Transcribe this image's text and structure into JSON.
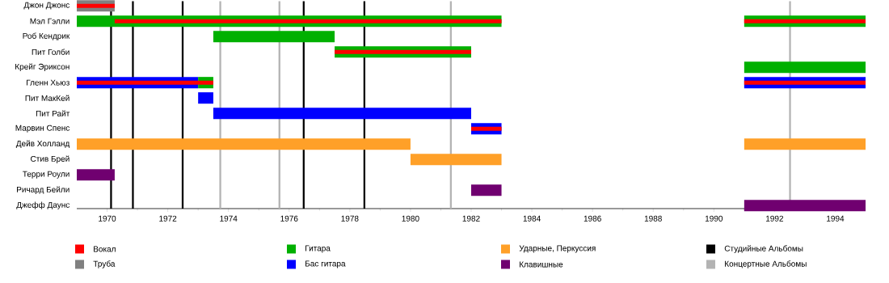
{
  "chart_data": {
    "type": "bar",
    "orientation": "horizontal",
    "legend": "bottom",
    "categories": [
      "Джон Джонс",
      "Мэл Гэлли",
      "Роб Кендрик",
      "Пит Голби",
      "Крейг Эриксон",
      "Гленн Хьюз",
      "Пит МакКей",
      "Пит Райт",
      "Марвин Спенс",
      "Дейв Холланд",
      "Стив Брей",
      "Терри Роули",
      "Ричард Бейли",
      "Джефф Даунс"
    ],
    "xlim": [
      1969,
      1995
    ],
    "xticks": [
      1970,
      1972,
      1974,
      1976,
      1978,
      1980,
      1982,
      1984,
      1986,
      1988,
      1990,
      1992,
      1994
    ],
    "series": [
      {
        "name": "Вокал",
        "color": "#ff0000",
        "base": [
          1969,
          1970.25,
          null,
          1977.5,
          null,
          1969,
          null,
          null,
          1982,
          null,
          null,
          null,
          null,
          null
        ],
        "values": [
          1.25,
          12.75,
          null,
          4.5,
          null,
          4.5,
          null,
          null,
          1,
          null,
          null,
          null,
          null,
          null
        ]
      },
      {
        "name": "Труба",
        "color": "#808080",
        "base": [
          1969,
          null,
          null,
          null,
          null,
          null,
          null,
          null,
          null,
          null,
          null,
          null,
          null,
          null
        ],
        "values": [
          1.25,
          null,
          null,
          null,
          null,
          null,
          null,
          null,
          null,
          null,
          null,
          null,
          null,
          null
        ]
      },
      {
        "name": "Гитара",
        "color": "#00b000",
        "base": [
          null,
          1969,
          1973.5,
          1977.5,
          null,
          1973,
          null,
          null,
          null,
          null,
          null,
          null,
          null,
          null
        ],
        "values": [
          null,
          14,
          4,
          4.5,
          null,
          0.5,
          null,
          null,
          null,
          null,
          null,
          null,
          null,
          null
        ]
      },
      {
        "name": "Бас гитара",
        "color": "#0000ff",
        "base": [
          null,
          null,
          null,
          null,
          null,
          1969,
          1973,
          1973.5,
          1982,
          null,
          null,
          null,
          null,
          null
        ],
        "values": [
          null,
          null,
          null,
          null,
          null,
          4,
          0.5,
          8.5,
          1,
          null,
          null,
          null,
          null,
          null
        ]
      },
      {
        "name": "Ударные, Перкуссия",
        "color": "#ffa028",
        "base": [
          null,
          null,
          null,
          null,
          null,
          null,
          null,
          null,
          null,
          1969,
          1980,
          null,
          null,
          null
        ],
        "values": [
          null,
          null,
          null,
          null,
          null,
          null,
          null,
          null,
          null,
          11,
          3,
          null,
          null,
          null
        ]
      },
      {
        "name": "Клавишные",
        "color": "#700070",
        "base": [
          null,
          null,
          null,
          null,
          null,
          null,
          null,
          null,
          null,
          null,
          null,
          1969,
          1982,
          null
        ],
        "values": [
          null,
          null,
          null,
          null,
          null,
          null,
          null,
          null,
          null,
          null,
          null,
          1.25,
          1,
          null
        ]
      },
      {
        "color": "#ff0000",
        "base": [
          null,
          1991,
          null,
          null,
          null,
          1991,
          null,
          null,
          null,
          null,
          null,
          null,
          null,
          null
        ],
        "values": [
          null,
          4,
          null,
          null,
          null,
          4,
          null,
          null,
          null,
          null,
          null,
          null,
          null,
          null
        ]
      },
      {
        "color": "#00b000",
        "base": [
          null,
          1991,
          null,
          null,
          1991,
          null,
          null,
          null,
          null,
          null,
          null,
          null,
          null,
          null
        ],
        "values": [
          null,
          4,
          null,
          null,
          4,
          null,
          null,
          null,
          null,
          null,
          null,
          null,
          null,
          null
        ]
      },
      {
        "color": "#0000ff",
        "base": [
          null,
          null,
          null,
          null,
          null,
          1991,
          null,
          null,
          null,
          null,
          null,
          null,
          null,
          null
        ],
        "values": [
          null,
          null,
          null,
          null,
          null,
          4,
          null,
          null,
          null,
          null,
          null,
          null,
          null,
          null
        ]
      },
      {
        "color": "#ffa028",
        "base": [
          null,
          null,
          null,
          null,
          null,
          null,
          null,
          null,
          null,
          1991,
          null,
          null,
          null,
          null
        ],
        "values": [
          null,
          null,
          null,
          null,
          null,
          null,
          null,
          null,
          null,
          4,
          null,
          null,
          null,
          null
        ]
      },
      {
        "color": "#700070",
        "base": [
          null,
          null,
          null,
          null,
          null,
          null,
          null,
          null,
          null,
          null,
          null,
          null,
          null,
          1991
        ],
        "values": [
          null,
          null,
          null,
          null,
          null,
          null,
          null,
          null,
          null,
          null,
          null,
          null,
          null,
          4
        ]
      }
    ],
    "ref_lines": [
      {
        "axis": "x",
        "value": 1970.13,
        "color": "#000000",
        "label": "Студийные Альбомы"
      },
      {
        "axis": "x",
        "value": 1970.85,
        "color": "#000000"
      },
      {
        "axis": "x",
        "value": 1972.49,
        "color": "#000000"
      },
      {
        "axis": "x",
        "value": 1976.48,
        "color": "#000000"
      },
      {
        "axis": "x",
        "value": 1978.48,
        "color": "#000000"
      },
      {
        "axis": "x",
        "value": 1973.73,
        "color": "#b3b3b3",
        "label": "Концертные Альбомы"
      },
      {
        "axis": "x",
        "value": 1975.68,
        "color": "#b3b3b3"
      },
      {
        "axis": "x",
        "value": 1981.33,
        "color": "#b3b3b3"
      },
      {
        "axis": "x",
        "value": 1992.51,
        "color": "#b3b3b3"
      }
    ]
  }
}
